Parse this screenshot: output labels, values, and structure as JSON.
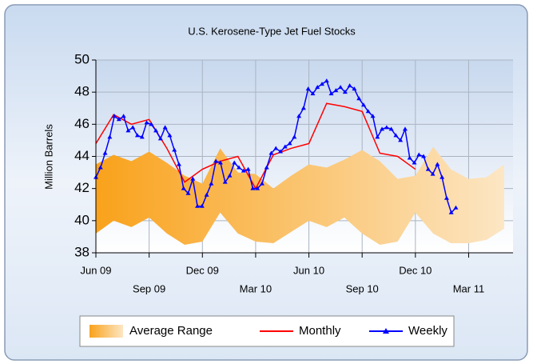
{
  "chart_data": {
    "type": "line",
    "title": "U.S. Kerosene-Type Jet Fuel Stocks",
    "y_label": "Million Barrels",
    "ylim": [
      38,
      50
    ],
    "yticks": [
      38,
      40,
      42,
      44,
      46,
      48,
      50
    ],
    "xlim": [
      0,
      23.5
    ],
    "xticks": [
      {
        "value": 0,
        "label": "Jun 09"
      },
      {
        "value": 3,
        "label": "Sep 09"
      },
      {
        "value": 6,
        "label": "Dec 09"
      },
      {
        "value": 9,
        "label": "Mar 10"
      },
      {
        "value": 12,
        "label": "Jun 10"
      },
      {
        "value": 15,
        "label": "Sep 10"
      },
      {
        "value": 18,
        "label": "Dec 10"
      },
      {
        "value": 21,
        "label": "Mar 11"
      }
    ],
    "grid": true,
    "legend": "bottom",
    "series": [
      {
        "name": "Average Range",
        "type": "band",
        "color": "#f9a21b",
        "x": [
          0,
          1,
          2,
          3,
          4,
          5,
          6,
          7,
          8,
          9,
          10,
          11,
          12,
          13,
          14,
          15,
          16,
          17,
          18,
          19,
          20,
          21,
          22,
          23
        ],
        "upper": [
          43.5,
          44.1,
          43.7,
          44.3,
          43.6,
          42.8,
          42.3,
          44.5,
          43.0,
          42.9,
          42.0,
          42.8,
          43.5,
          43.3,
          43.8,
          44.4,
          43.7,
          42.6,
          42.8,
          44.6,
          43.2,
          42.6,
          42.7,
          43.5
        ],
        "lower": [
          39.2,
          40.0,
          39.6,
          40.2,
          39.2,
          38.5,
          38.7,
          40.5,
          39.2,
          38.7,
          38.6,
          39.3,
          40.0,
          39.6,
          40.2,
          39.2,
          38.5,
          38.7,
          40.5,
          39.2,
          38.6,
          38.6,
          38.8,
          39.5
        ]
      },
      {
        "name": "Monthly",
        "type": "line",
        "color": "#ff0000",
        "x": [
          0,
          1,
          2,
          3,
          4,
          5,
          6,
          7,
          8,
          9,
          10,
          11,
          12,
          13,
          14,
          15,
          16,
          17,
          18
        ],
        "values": [
          44.8,
          46.6,
          46.0,
          46.3,
          44.5,
          42.4,
          43.2,
          43.7,
          44.0,
          42.0,
          44.1,
          44.5,
          44.8,
          47.3,
          47.1,
          46.8,
          44.2,
          44.0,
          43.2
        ]
      },
      {
        "name": "Weekly",
        "type": "line",
        "color": "#0000ff",
        "marker": "triangle",
        "x": [
          0,
          0.26,
          0.52,
          0.78,
          1.04,
          1.3,
          1.56,
          1.82,
          2.08,
          2.34,
          2.6,
          2.86,
          3.12,
          3.38,
          3.64,
          3.9,
          4.16,
          4.42,
          4.68,
          4.94,
          5.2,
          5.46,
          5.72,
          5.98,
          6.24,
          6.5,
          6.76,
          7.02,
          7.28,
          7.54,
          7.8,
          8.06,
          8.32,
          8.58,
          8.84,
          9.1,
          9.36,
          9.62,
          9.88,
          10.14,
          10.4,
          10.66,
          10.92,
          11.18,
          11.44,
          11.7,
          11.96,
          12.22,
          12.48,
          12.74,
          13,
          13.26,
          13.52,
          13.78,
          14.04,
          14.3,
          14.56,
          14.82,
          15.08,
          15.34,
          15.6,
          15.86,
          16.12,
          16.38,
          16.64,
          16.9,
          17.16,
          17.42,
          17.68,
          17.94,
          18.2,
          18.46,
          18.72,
          18.98,
          19.24,
          19.5,
          19.76,
          20.02,
          20.28
        ],
        "values": [
          42.7,
          43.3,
          44.2,
          45.2,
          46.5,
          46.3,
          46.5,
          45.6,
          45.8,
          45.3,
          45.2,
          46.1,
          46.0,
          45.6,
          45.1,
          45.8,
          45.3,
          44.4,
          43.5,
          42.0,
          41.7,
          42.6,
          40.9,
          40.9,
          41.6,
          42.3,
          43.7,
          43.6,
          42.4,
          42.8,
          43.6,
          43.3,
          43.1,
          43.2,
          42.0,
          42.0,
          42.3,
          43.3,
          44.2,
          44.5,
          44.3,
          44.6,
          44.8,
          45.2,
          46.5,
          47.0,
          48.2,
          47.9,
          48.3,
          48.5,
          48.7,
          47.9,
          48.1,
          48.3,
          48.0,
          48.4,
          48.2,
          47.6,
          47.2,
          46.8,
          46.5,
          45.2,
          45.7,
          45.8,
          45.7,
          45.3,
          45.0,
          45.7,
          43.9,
          43.6,
          44.1,
          44.0,
          43.2,
          42.9,
          43.5,
          42.7,
          41.4,
          40.5,
          40.8
        ]
      }
    ]
  }
}
